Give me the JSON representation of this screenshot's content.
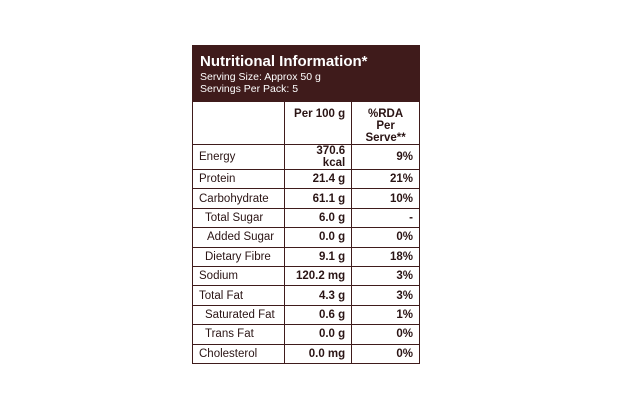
{
  "header": {
    "title": "Nutritional Information*",
    "serving_size": "Serving Size: Approx 50 g",
    "servings_per_pack": "Servings Per Pack: 5"
  },
  "table": {
    "columns": [
      "",
      "Per 100 g",
      "%RDA Per Serve**"
    ],
    "rows": [
      {
        "name": "Energy",
        "per100": "370.6 kcal",
        "rda": "9%"
      },
      {
        "name": "Protein",
        "per100": "21.4 g",
        "rda": "21%"
      },
      {
        "name": "Carbohydrate",
        "per100": "61.1 g",
        "rda": "10%"
      },
      {
        "name": "Total Sugar",
        "per100": "6.0 g",
        "rda": "-"
      },
      {
        "name": "Added Sugar",
        "per100": "0.0 g",
        "rda": "0%"
      },
      {
        "name": "Dietary Fibre",
        "per100": "9.1 g",
        "rda": "18%"
      },
      {
        "name": "Sodium",
        "per100": "120.2 mg",
        "rda": "3%"
      },
      {
        "name": "Total Fat",
        "per100": "4.3 g",
        "rda": "3%"
      },
      {
        "name": "Saturated Fat",
        "per100": "0.6 g",
        "rda": "1%"
      },
      {
        "name": "Trans Fat",
        "per100": "0.0 g",
        "rda": "0%"
      },
      {
        "name": "Cholesterol",
        "per100": "0.0 mg",
        "rda": "0%"
      }
    ]
  },
  "colors": {
    "header_bg": "#3f1b1b",
    "border": "#3f1b1b"
  }
}
